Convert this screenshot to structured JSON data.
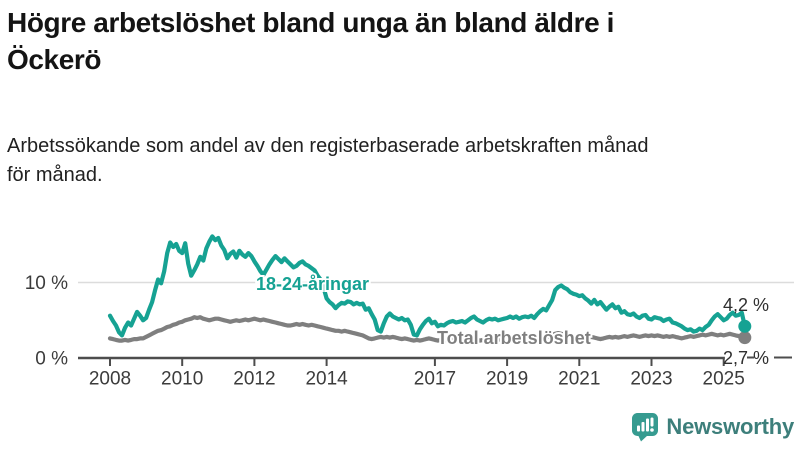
{
  "header": {
    "title": "Högre arbetslöshet bland unga än bland äldre i\nÖckerö",
    "subtitle": "Arbetssökande som andel av den registerbaserade arbetskraften månad\nför månad."
  },
  "colors": {
    "youth": "#16a293",
    "total": "#828282",
    "grid": "#dcdcdc",
    "axis": "#4d4d4d",
    "logo_icon": "#369b90",
    "logo_text": "#3d7f7b"
  },
  "logo": {
    "name": "Newsworthy",
    "icon": "bar-chart-speech-bubble-icon"
  },
  "chart_data": {
    "type": "line",
    "title": "Högre arbetslöshet bland unga än bland äldre i Öckerö",
    "subtitle": "Arbetssökande som andel av den registerbaserade arbetskraften månad för månad.",
    "x_start_year": 2008,
    "x_resolution": "monthly",
    "x_end": "2025-08",
    "x_ticks": [
      2008,
      2010,
      2012,
      2014,
      2017,
      2019,
      2021,
      2023,
      2025
    ],
    "y_labels": [
      {
        "value": 0,
        "label": "0 %"
      },
      {
        "value": 10,
        "label": "10 %"
      }
    ],
    "ylim": [
      0,
      17
    ],
    "grid": "horizontal-10pct-only",
    "legend_position": "inline-labels-on-lines",
    "series": [
      {
        "name": "18-24-åringar",
        "color": "#16a293",
        "end_label": "4,2 %",
        "end_value": 4.2,
        "values": [
          5.6,
          4.9,
          4.3,
          3.4,
          3.0,
          4.0,
          4.7,
          4.3,
          5.2,
          6.1,
          5.6,
          5.0,
          5.3,
          6.4,
          7.4,
          9.0,
          10.4,
          9.9,
          11.5,
          13.9,
          15.3,
          14.7,
          15.1,
          14.2,
          13.9,
          15.2,
          12.5,
          10.9,
          11.6,
          12.4,
          13.4,
          12.9,
          14.5,
          15.4,
          16.1,
          15.6,
          15.9,
          14.9,
          14.3,
          13.2,
          13.8,
          14.1,
          13.3,
          14.2,
          13.7,
          13.4,
          13.9,
          13.5,
          12.8,
          12.2,
          11.5,
          11.0,
          11.7,
          12.4,
          13.0,
          13.5,
          13.1,
          12.7,
          13.2,
          12.8,
          12.4,
          12.0,
          12.2,
          12.6,
          12.8,
          12.4,
          12.2,
          11.9,
          11.6,
          10.9,
          10.4,
          9.3,
          7.9,
          7.4,
          7.1,
          6.6,
          7.0,
          7.3,
          7.2,
          7.5,
          7.4,
          7.1,
          7.3,
          7.1,
          7.2,
          6.4,
          6.6,
          5.8,
          5.1,
          3.7,
          3.5,
          4.6,
          5.5,
          5.9,
          5.5,
          5.3,
          5.1,
          5.3,
          5.0,
          5.1,
          4.4,
          3.1,
          3.0,
          3.8,
          4.4,
          4.9,
          5.2,
          4.6,
          4.8,
          4.2,
          4.4,
          4.3,
          4.6,
          4.8,
          4.9,
          4.7,
          4.8,
          4.9,
          4.7,
          5.0,
          5.3,
          5.5,
          5.1,
          4.9,
          4.7,
          5.0,
          5.2,
          5.1,
          5.2,
          5.0,
          5.1,
          5.2,
          5.3,
          5.5,
          5.3,
          5.5,
          5.2,
          5.4,
          5.5,
          5.4,
          5.6,
          5.3,
          5.8,
          6.2,
          6.5,
          6.3,
          7.0,
          7.7,
          9.0,
          9.4,
          9.6,
          9.3,
          9.1,
          8.7,
          8.5,
          8.4,
          8.2,
          8.3,
          7.9,
          7.6,
          7.2,
          7.7,
          7.1,
          7.4,
          6.9,
          6.4,
          6.8,
          7.1,
          6.6,
          6.8,
          6.0,
          6.2,
          5.8,
          5.7,
          5.9,
          5.5,
          5.3,
          5.6,
          5.7,
          5.2,
          5.1,
          5.4,
          5.3,
          5.2,
          4.9,
          5.1,
          5.2,
          4.7,
          4.6,
          4.4,
          4.2,
          3.9,
          3.7,
          3.8,
          3.5,
          3.6,
          3.9,
          3.7,
          4.1,
          4.4,
          5.0,
          5.5,
          5.8,
          5.4,
          5.0,
          5.2,
          5.7,
          6.0,
          5.6,
          5.7,
          6.0,
          4.2
        ]
      },
      {
        "name": "Total arbetslöshet",
        "color": "#7f7f7f",
        "end_label": "2,7 %",
        "end_value": 2.7,
        "values": [
          2.6,
          2.5,
          2.4,
          2.3,
          2.3,
          2.4,
          2.3,
          2.4,
          2.5,
          2.5,
          2.6,
          2.6,
          2.8,
          3.0,
          3.2,
          3.4,
          3.6,
          3.7,
          3.9,
          4.1,
          4.2,
          4.4,
          4.5,
          4.7,
          4.8,
          5.0,
          5.1,
          5.2,
          5.4,
          5.3,
          5.4,
          5.2,
          5.1,
          5.0,
          5.1,
          5.2,
          5.2,
          5.1,
          5.0,
          4.9,
          4.8,
          4.9,
          5.0,
          4.9,
          5.0,
          5.1,
          5.0,
          5.1,
          5.2,
          5.1,
          5.0,
          5.1,
          5.0,
          4.9,
          4.8,
          4.7,
          4.6,
          4.5,
          4.4,
          4.3,
          4.3,
          4.4,
          4.5,
          4.4,
          4.5,
          4.4,
          4.3,
          4.4,
          4.3,
          4.2,
          4.1,
          4.0,
          3.9,
          3.8,
          3.7,
          3.6,
          3.6,
          3.5,
          3.6,
          3.5,
          3.4,
          3.3,
          3.2,
          3.1,
          3.0,
          2.8,
          2.6,
          2.5,
          2.6,
          2.7,
          2.8,
          2.7,
          2.8,
          2.7,
          2.8,
          2.7,
          2.6,
          2.5,
          2.6,
          2.5,
          2.4,
          2.3,
          2.4,
          2.3,
          2.4,
          2.5,
          2.6,
          2.5,
          2.4,
          2.3,
          2.4,
          2.3,
          2.4,
          2.5,
          2.4,
          2.5,
          2.4,
          2.5,
          2.6,
          2.5,
          2.4,
          2.5,
          2.4,
          2.3,
          2.4,
          2.3,
          2.4,
          2.5,
          2.4,
          2.5,
          2.4,
          2.5,
          2.4,
          2.5,
          2.6,
          2.5,
          2.6,
          2.5,
          2.6,
          2.7,
          2.6,
          2.5,
          2.4,
          2.5,
          2.6,
          2.7,
          2.9,
          3.1,
          3.2,
          3.3,
          3.2,
          3.1,
          3.0,
          2.9,
          2.8,
          2.9,
          3.0,
          2.9,
          2.8,
          2.7,
          2.8,
          2.7,
          2.6,
          2.5,
          2.6,
          2.7,
          2.8,
          2.7,
          2.8,
          2.7,
          2.8,
          2.9,
          2.8,
          2.9,
          3.0,
          2.9,
          2.8,
          2.9,
          3.0,
          2.9,
          3.0,
          2.9,
          3.0,
          2.9,
          2.8,
          2.9,
          2.8,
          2.9,
          2.8,
          2.7,
          2.6,
          2.7,
          2.8,
          2.9,
          2.8,
          2.9,
          3.0,
          3.1,
          3.0,
          3.1,
          3.2,
          3.1,
          3.0,
          3.1,
          3.0,
          3.1,
          3.2,
          3.1,
          3.0,
          2.9,
          3.0,
          2.7
        ]
      }
    ]
  }
}
